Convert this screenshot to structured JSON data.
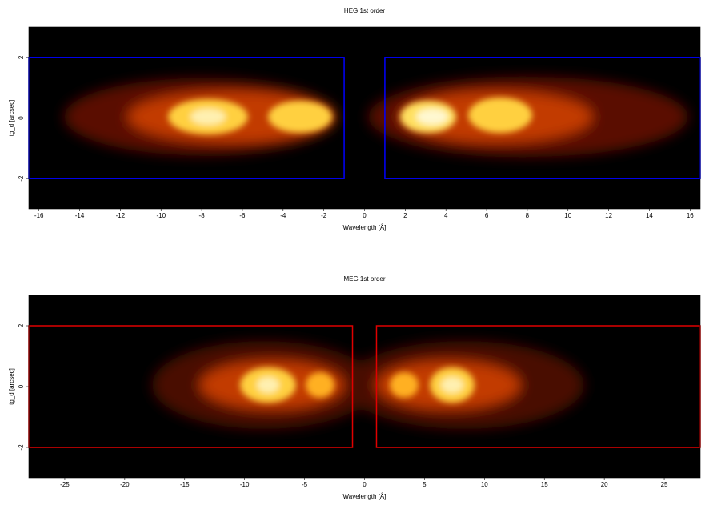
{
  "chart_data": [
    {
      "type": "heatmap",
      "title": "HEG 1st order",
      "xlabel": "Wavelength [Å]",
      "ylabel": "tg_d [arcsec]",
      "xlim": [
        -16.5,
        16.5
      ],
      "ylim": [
        -3,
        3
      ],
      "xticks": [
        -16,
        -14,
        -12,
        -10,
        -8,
        -6,
        -4,
        -2,
        0,
        2,
        4,
        6,
        8,
        10,
        12,
        14,
        16
      ],
      "yticks": [
        -2,
        0,
        2
      ],
      "region_color": "#0000ff",
      "regions": [
        {
          "x": [
            -16.5,
            -1
          ],
          "y": [
            -2,
            2
          ]
        },
        {
          "x": [
            1,
            16.5
          ],
          "y": [
            -2,
            2
          ]
        }
      ]
    },
    {
      "type": "heatmap",
      "title": "MEG 1st order",
      "xlabel": "Wavelength [Å]",
      "ylabel": "tg_d [arcsec]",
      "xlim": [
        -28,
        28
      ],
      "ylim": [
        -3,
        3
      ],
      "xticks": [
        -25,
        -20,
        -15,
        -10,
        -5,
        0,
        5,
        10,
        15,
        20,
        25
      ],
      "yticks": [
        -2,
        0,
        2
      ],
      "region_color": "#e00000",
      "regions": [
        {
          "x": [
            -28,
            -1
          ],
          "y": [
            -2,
            2
          ]
        },
        {
          "x": [
            1,
            28
          ],
          "y": [
            -2,
            2
          ]
        }
      ]
    }
  ]
}
